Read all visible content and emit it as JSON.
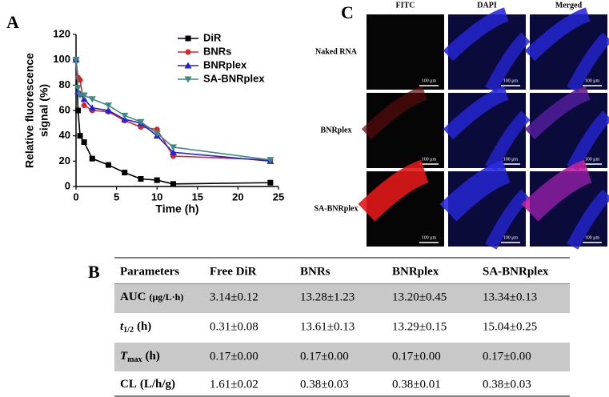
{
  "panel_labels": {
    "A": "A",
    "B": "B",
    "C": "C"
  },
  "chart_data": {
    "type": "line",
    "xlabel": "Time (h)",
    "ylabel": [
      "Relative fluorescence",
      "signal (%)"
    ],
    "x": [
      0,
      0.25,
      0.5,
      1,
      2,
      4,
      6,
      8,
      10,
      12,
      24
    ],
    "xlim": [
      0,
      25
    ],
    "xticks": [
      0,
      5,
      10,
      15,
      20,
      25
    ],
    "ylim": [
      0,
      120
    ],
    "yticks": [
      0,
      20,
      40,
      60,
      80,
      100,
      120
    ],
    "legend": "upper right",
    "series": [
      {
        "name": "DiR",
        "color": "#000000",
        "marker": "square",
        "values": [
          100,
          60,
          40,
          35,
          22,
          17,
          11,
          6,
          5,
          2,
          3
        ]
      },
      {
        "name": "BNRs",
        "color": "#d62728",
        "marker": "circle",
        "values": [
          100,
          86,
          84,
          64,
          60,
          59,
          52,
          47,
          45,
          24,
          21
        ]
      },
      {
        "name": "BNRplex",
        "color": "#2222dd",
        "marker": "triangle-up",
        "values": [
          100,
          75,
          73,
          69,
          62,
          60,
          53,
          50,
          40,
          27,
          20
        ]
      },
      {
        "name": "SA-BNRplex",
        "color": "#3d8a80",
        "marker": "triangle-down",
        "values": [
          100,
          78,
          72,
          72,
          69,
          64,
          56,
          51,
          42,
          31,
          21
        ]
      }
    ]
  },
  "microscopy": {
    "columns": [
      "FITC",
      "DAPI",
      "Merged"
    ],
    "rows": [
      "Naked RNA",
      "BNRplex",
      "SA-BNRplex"
    ],
    "scale_bar": "100 μm"
  },
  "table": {
    "header": [
      "Parameters",
      "Free DiR",
      "BNRs",
      "BNRplex",
      "SA-BNRplex"
    ],
    "rows": [
      {
        "label": {
          "symbol": "AUC",
          "sub": "",
          "unit": "(μg/L·h)"
        },
        "cells": [
          "3.14±0.12",
          "13.28±1.23",
          "13.20±0.45",
          "13.34±0.13"
        ]
      },
      {
        "label": {
          "symbol": "t",
          "sub": "1/2",
          "unit": "(h)"
        },
        "cells": [
          "0.31±0.08",
          "13.61±0.13",
          "13.29±0.15",
          "15.04±0.25"
        ]
      },
      {
        "label": {
          "symbol": "T",
          "sub": "max",
          "unit": "(h)"
        },
        "cells": [
          "0.17±0.00",
          "0.17±0.00",
          "0.17±0.00",
          "0.17±0.00"
        ]
      },
      {
        "label": {
          "symbol": "CL",
          "sub": "",
          "unit": "(L/h/g)"
        },
        "cells": [
          "1.61±0.02",
          "0.38±0.03",
          "0.38±0.01",
          "0.38±0.03"
        ]
      }
    ]
  }
}
